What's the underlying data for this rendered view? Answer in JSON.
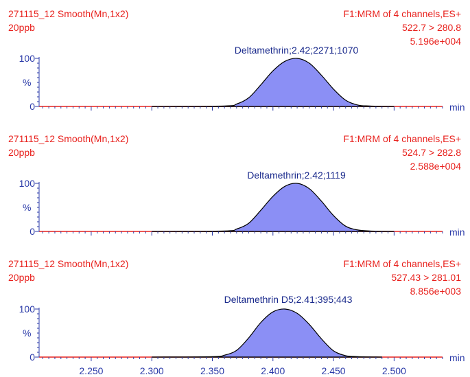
{
  "chart_data": [
    {
      "type": "area",
      "header_left": [
        "271115_12 Smooth(Mn,1x2)",
        "20ppb"
      ],
      "header_right": [
        "F1:MRM of 4 channels,ES+",
        "522.7 > 280.8",
        "5.196e+004"
      ],
      "peak_label": "Deltamethrin;2.42;2271;1070",
      "ylabel": "%",
      "xlabel": "min",
      "yticks": [
        "0",
        "100"
      ],
      "xlim": [
        2.207,
        2.54
      ],
      "ylim": [
        0,
        100
      ],
      "x": [
        2.3,
        2.36,
        2.37,
        2.38,
        2.39,
        2.4,
        2.41,
        2.42,
        2.43,
        2.44,
        2.45,
        2.46,
        2.47,
        2.48,
        2.5
      ],
      "values": [
        0,
        1,
        5,
        18,
        45,
        74,
        94,
        100,
        90,
        65,
        36,
        13,
        3,
        1,
        0
      ]
    },
    {
      "type": "area",
      "header_left": [
        "271115_12 Smooth(Mn,1x2)",
        "20ppb"
      ],
      "header_right": [
        "F1:MRM of 4 channels,ES+",
        "524.7 > 282.8",
        "2.588e+004"
      ],
      "peak_label": "Deltamethrin;2.42;1119",
      "ylabel": "%",
      "xlabel": "min",
      "yticks": [
        "0",
        "100"
      ],
      "xlim": [
        2.207,
        2.54
      ],
      "ylim": [
        0,
        100
      ],
      "x": [
        2.3,
        2.36,
        2.37,
        2.38,
        2.39,
        2.4,
        2.41,
        2.42,
        2.43,
        2.44,
        2.45,
        2.46,
        2.47,
        2.48,
        2.5
      ],
      "values": [
        0,
        1,
        5,
        17,
        44,
        73,
        94,
        100,
        89,
        63,
        33,
        11,
        3,
        1,
        0
      ]
    },
    {
      "type": "area",
      "header_left": [
        "271115_12 Smooth(Mn,1x2)",
        "20ppb"
      ],
      "header_right": [
        "F1:MRM of 4 channels,ES+",
        "527.43 > 281.01",
        "8.856e+003"
      ],
      "peak_label": "Deltamethrin D5;2.41;395;443",
      "ylabel": "%",
      "xlabel": "min",
      "yticks": [
        "0",
        "100"
      ],
      "xlim": [
        2.207,
        2.54
      ],
      "ylim": [
        0,
        100
      ],
      "x": [
        2.3,
        2.35,
        2.36,
        2.37,
        2.38,
        2.39,
        2.4,
        2.41,
        2.42,
        2.43,
        2.44,
        2.45,
        2.46,
        2.47,
        2.49
      ],
      "values": [
        0,
        1,
        4,
        14,
        40,
        72,
        94,
        100,
        91,
        68,
        38,
        13,
        3,
        1,
        0
      ]
    }
  ],
  "x_axis_ticks": [
    "2.250",
    "2.300",
    "2.350",
    "2.400",
    "2.450",
    "2.500"
  ],
  "colors": {
    "header": "#e8201c",
    "peak_fill": "#8b8ff5",
    "axis": "#2a3aa8",
    "baseline": "#e8201c"
  }
}
